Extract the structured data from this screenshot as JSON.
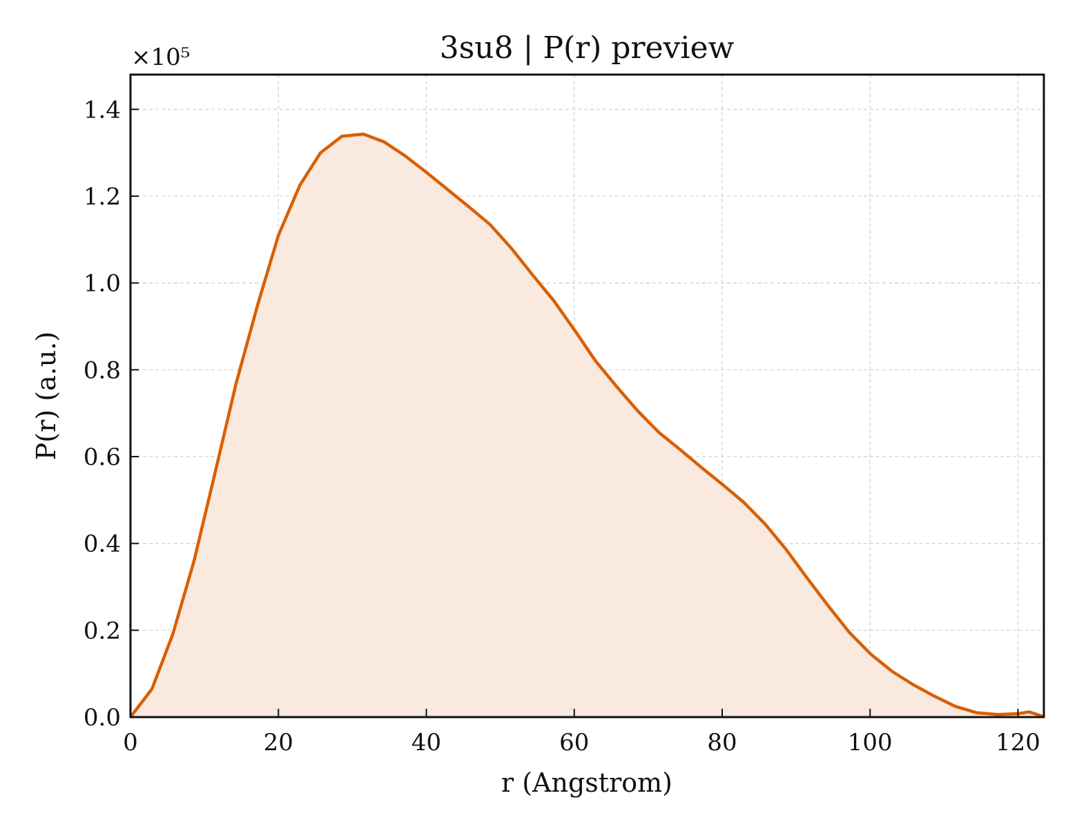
{
  "chart_data": {
    "type": "area",
    "title": "3su8 | P(r) preview",
    "xlabel": "r (Angstrom)",
    "ylabel": "P(r) (a.u.)",
    "y_multiplier_label": "×10⁵",
    "xlim": [
      0,
      123.5
    ],
    "ylim": [
      0,
      1.48
    ],
    "xticks": [
      "0",
      "20",
      "40",
      "60",
      "80",
      "100",
      "120"
    ],
    "xtick_values": [
      0,
      20,
      40,
      60,
      80,
      100,
      120
    ],
    "yticks": [
      "0.0",
      "0.2",
      "0.4",
      "0.6",
      "0.8",
      "1.0",
      "1.2",
      "1.4"
    ],
    "ytick_values": [
      0,
      0.2,
      0.4,
      0.6,
      0.8,
      1.0,
      1.2,
      1.4
    ],
    "grid": true,
    "colors": {
      "line": "#d95f02",
      "fill": "#f9e9df"
    },
    "series": [
      {
        "x": [
          0,
          2.9,
          5.7,
          8.6,
          11.4,
          14.3,
          17.2,
          20.0,
          22.9,
          25.7,
          28.6,
          31.5,
          34.3,
          37.2,
          40.0,
          42.9,
          45.8,
          48.6,
          51.5,
          54.3,
          57.2,
          60.1,
          62.9,
          65.8,
          68.6,
          71.5,
          74.4,
          77.2,
          80.1,
          82.9,
          85.8,
          88.7,
          91.5,
          94.4,
          97.2,
          100.1,
          103.0,
          105.8,
          108.7,
          111.5,
          114.4,
          117.3,
          120.1,
          121.5,
          123.5
        ],
        "values": [
          0.0,
          0.065,
          0.19,
          0.36,
          0.56,
          0.77,
          0.95,
          1.11,
          1.225,
          1.3,
          1.338,
          1.343,
          1.325,
          1.292,
          1.255,
          1.215,
          1.175,
          1.135,
          1.08,
          1.02,
          0.96,
          0.89,
          0.82,
          0.76,
          0.705,
          0.655,
          0.615,
          0.575,
          0.535,
          0.495,
          0.445,
          0.385,
          0.32,
          0.255,
          0.195,
          0.145,
          0.105,
          0.075,
          0.048,
          0.025,
          0.01,
          0.006,
          0.008,
          0.012,
          0.001
        ]
      }
    ]
  }
}
